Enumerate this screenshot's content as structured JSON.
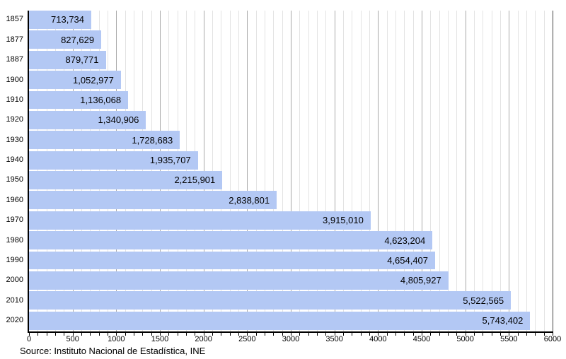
{
  "chart_data": {
    "type": "bar",
    "orientation": "horizontal",
    "title": "",
    "categories": [
      "1857",
      "1877",
      "1887",
      "1900",
      "1910",
      "1920",
      "1930",
      "1940",
      "1950",
      "1960",
      "1970",
      "1980",
      "1990",
      "2000",
      "2010",
      "2020"
    ],
    "values": [
      713734,
      827629,
      879771,
      1052977,
      1136068,
      1340906,
      1728683,
      1935707,
      2215901,
      2838801,
      3915010,
      4623204,
      4654407,
      4805927,
      5522565,
      5743402
    ],
    "value_labels": [
      "713,734",
      "827,629",
      "879,771",
      "1,052,977",
      "1,136,068",
      "1,340,906",
      "1,728,683",
      "1,935,707",
      "2,215,901",
      "2,838,801",
      "3,915,010",
      "4,623,204",
      "4,654,407",
      "4,805,927",
      "5,522,565",
      "5,743,402"
    ],
    "xlim": [
      0,
      6000
    ],
    "x_tick_labels": [
      "0",
      "500",
      "1000",
      "1500",
      "2000",
      "2500",
      "3000",
      "3500",
      "4000",
      "4500",
      "5000",
      "5500",
      "6000"
    ],
    "x_major_step": 500,
    "x_minor_step": 100,
    "grid": "vertical",
    "legend": "none",
    "source": "Source: Instituto Nacional de Estadística, INE",
    "colors": {
      "bar_fill": "#b3c8f4",
      "major_grid": "#a9a9a9",
      "minor_grid": "#e3e3e3",
      "axis": "#000000",
      "text": "#000000"
    }
  }
}
